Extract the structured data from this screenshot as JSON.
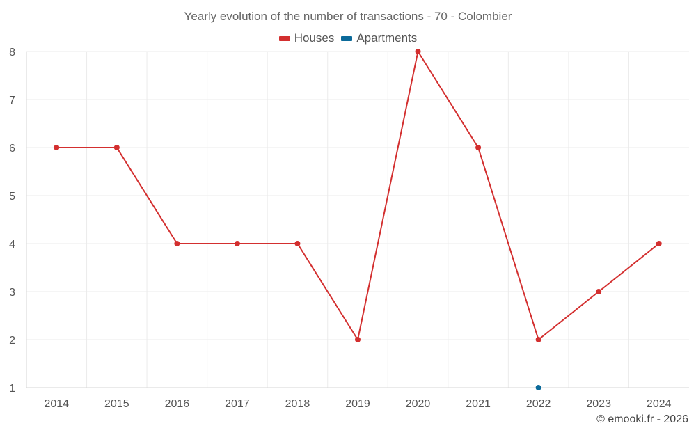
{
  "chart_data": {
    "type": "line",
    "title": "Yearly evolution of the number of transactions - 70 - Colombier",
    "categories": [
      "2014",
      "2015",
      "2016",
      "2017",
      "2018",
      "2019",
      "2020",
      "2021",
      "2022",
      "2023",
      "2024"
    ],
    "series": [
      {
        "name": "Houses",
        "color": "#d32f2f",
        "values": [
          6,
          6,
          4,
          4,
          4,
          2,
          8,
          6,
          2,
          3,
          4
        ]
      },
      {
        "name": "Apartments",
        "color": "#0b6a9a",
        "values": [
          null,
          null,
          null,
          null,
          null,
          null,
          null,
          null,
          1,
          null,
          null
        ]
      }
    ],
    "ylim": [
      1,
      8
    ],
    "yticks": [
      1,
      2,
      3,
      4,
      5,
      6,
      7,
      8
    ],
    "grid": true,
    "legend": "top-center"
  },
  "credit": "© emooki.fr - 2026"
}
